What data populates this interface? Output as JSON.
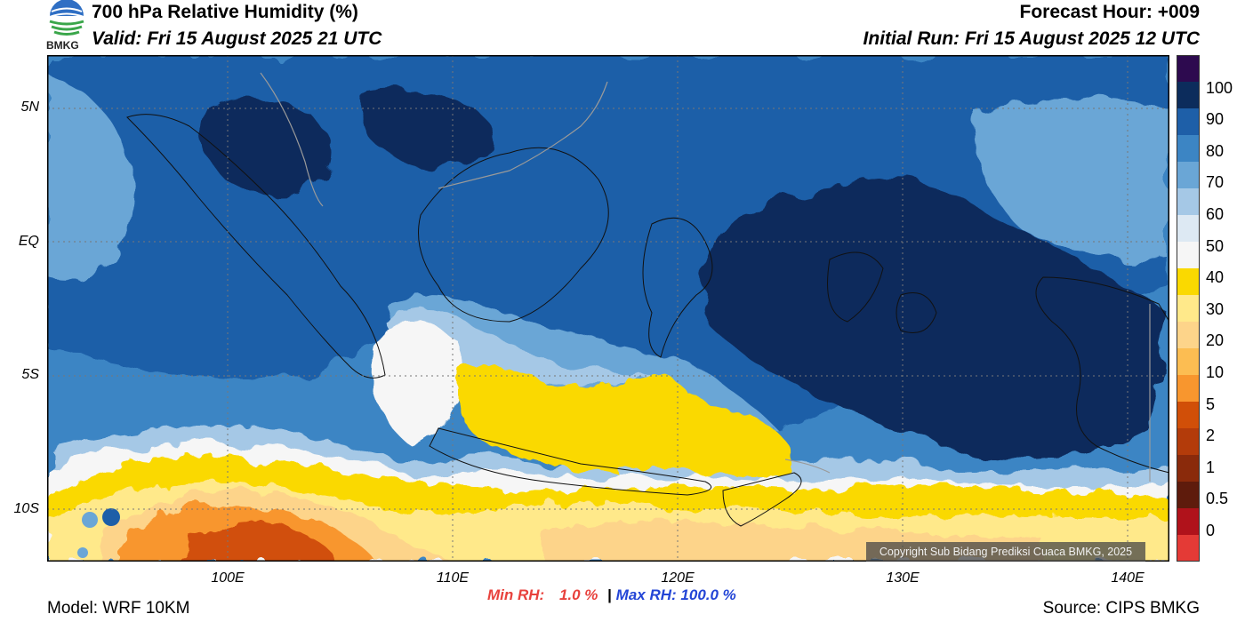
{
  "header": {
    "title": "700 hPa Relative Humidity (%)",
    "valid": "Valid: Fri 15 August 2025 21 UTC",
    "forecast_hour": "Forecast Hour: +009",
    "initial_run": "Initial Run: Fri 15 August 2025 12 UTC",
    "logo_text": "BMKG"
  },
  "axes": {
    "lat_ticks": [
      "5N",
      "EQ",
      "5S",
      "10S"
    ],
    "lon_ticks": [
      "100E",
      "110E",
      "120E",
      "130E",
      "140E"
    ]
  },
  "colorbar": {
    "labels": [
      "100",
      "90",
      "80",
      "70",
      "60",
      "50",
      "40",
      "30",
      "20",
      "10",
      "5",
      "2",
      "1",
      "0.5",
      "0"
    ],
    "colors": [
      "#2d0a4f",
      "#0c2c5c",
      "#1e5fa8",
      "#3c85c4",
      "#6aa6d6",
      "#a5c8e6",
      "#dde9f3",
      "#f6f6f6",
      "#fad900",
      "#ffe98a",
      "#fdd48a",
      "#fcbd52",
      "#f8962e",
      "#d14f08",
      "#b33b0a",
      "#8a2a0b",
      "#5e1b0c",
      "#b0121b",
      "#e43a36"
    ]
  },
  "stats": {
    "min_label": "Min RH:",
    "min_value": "1.0 %",
    "separator": "|",
    "max_label": "Max RH:",
    "max_value": "100.0 %"
  },
  "footer": {
    "model": "Model: WRF 10KM",
    "source": "Source: CIPS BMKG",
    "copyright": "Copyright Sub Bidang Prediksi Cuaca BMKG, 2025"
  }
}
